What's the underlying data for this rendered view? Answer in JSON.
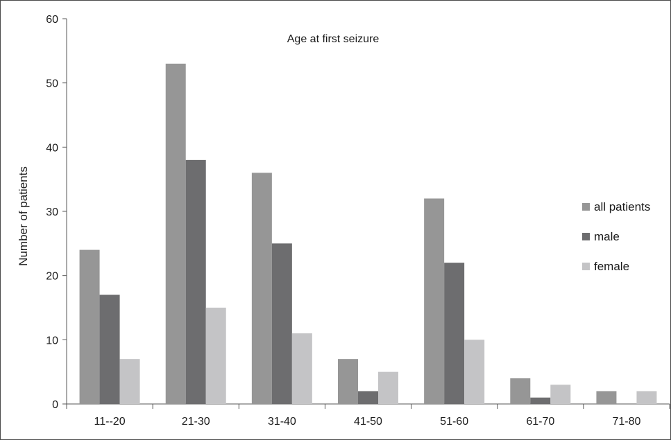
{
  "chart_data": {
    "type": "bar",
    "title": "Age at first seizure",
    "xlabel": "",
    "ylabel": "Number of patients",
    "ylim": [
      0,
      60
    ],
    "yticks": [
      0,
      10,
      20,
      30,
      40,
      50,
      60
    ],
    "grid": false,
    "legend_position": "right",
    "categories": [
      "11--20",
      "21-30",
      "31-40",
      "41-50",
      "51-60",
      "61-70",
      "71-80"
    ],
    "series": [
      {
        "name": "all patients",
        "color": "#969696",
        "values": [
          24,
          53,
          36,
          7,
          32,
          4,
          2
        ]
      },
      {
        "name": "male",
        "color": "#6d6d6f",
        "values": [
          17,
          38,
          25,
          2,
          22,
          1,
          0
        ]
      },
      {
        "name": "female",
        "color": "#c4c4c6",
        "values": [
          7,
          15,
          11,
          5,
          10,
          3,
          2
        ]
      }
    ]
  }
}
